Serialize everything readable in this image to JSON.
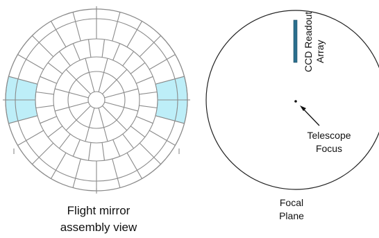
{
  "left_panel": {
    "caption_line1": "Flight mirror",
    "caption_line2": "assembly view",
    "stroke_color": "#8a8a8a",
    "highlight_color": "#bdeef8"
  },
  "right_panel": {
    "ccd_label_line1": "CCD Readout",
    "ccd_label_line2": "Array",
    "focus_label_line1": "Telescope",
    "focus_label_line2": "Focus",
    "plane_label_line1": "Focal",
    "plane_label_line2": "Plane",
    "ccd_color": "#2b6f8e",
    "arrow_icon": "arrow-icon"
  }
}
